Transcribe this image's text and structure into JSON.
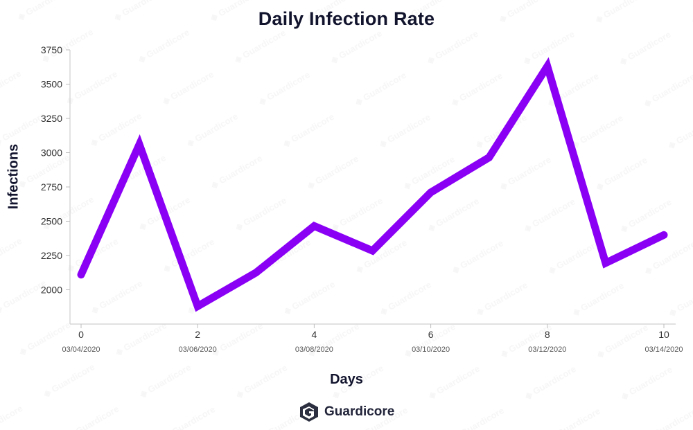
{
  "chart_data": {
    "type": "line",
    "title": "Daily Infection Rate",
    "xlabel": "Days",
    "ylabel": "Infections",
    "x": [
      0,
      1,
      2,
      3,
      4,
      5,
      6,
      7,
      8,
      9,
      10
    ],
    "values": [
      2110,
      3060,
      1880,
      2125,
      2465,
      2285,
      2710,
      2965,
      3630,
      2195,
      2400
    ],
    "xlim": [
      0,
      10
    ],
    "ylim": [
      1750,
      3750
    ],
    "yticks": [
      "2000",
      "2250",
      "2500",
      "2750",
      "3000",
      "3250",
      "3500",
      "3750"
    ],
    "xticks": [
      {
        "value": 0,
        "label": "0",
        "date": "03/04/2020"
      },
      {
        "value": 2,
        "label": "2",
        "date": "03/06/2020"
      },
      {
        "value": 4,
        "label": "4",
        "date": "03/08/2020"
      },
      {
        "value": 6,
        "label": "6",
        "date": "03/10/2020"
      },
      {
        "value": 8,
        "label": "8",
        "date": "03/12/2020"
      },
      {
        "value": 10,
        "label": "10",
        "date": "03/14/2020"
      }
    ],
    "grid": false,
    "line_color": "#8a00f5"
  },
  "branding": {
    "logo_text": "Guardicore",
    "logo_icon": "guardicore-logo-icon",
    "watermark_text": "Guardicore"
  }
}
